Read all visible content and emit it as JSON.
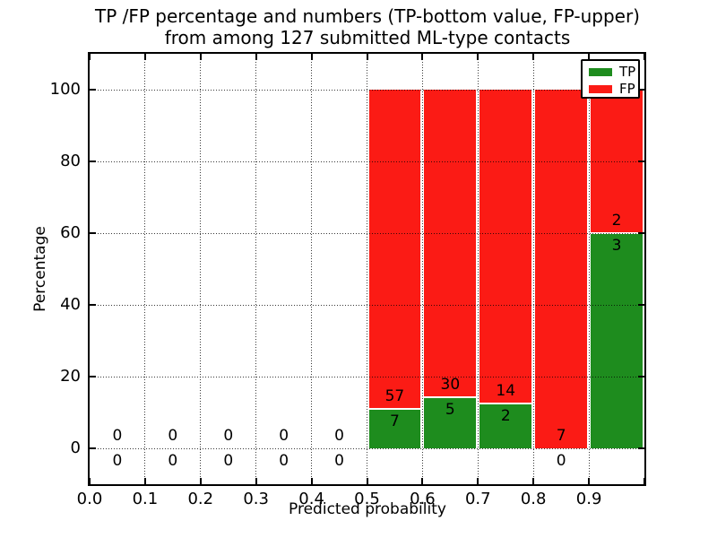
{
  "figure": {
    "title_line1": "TP /FP percentage and numbers (TP-bottom value, FP-upper)",
    "title_line2": "from among 127 submitted ML-type contacts",
    "xlabel": "Predicted probability",
    "ylabel": "Percentage"
  },
  "legend": {
    "items": [
      {
        "label": "TP",
        "color": "#1e8c1e"
      },
      {
        "label": "FP",
        "color": "#fb1b15"
      }
    ]
  },
  "chart_data": {
    "type": "bar",
    "stacked": true,
    "title": "TP /FP percentage and numbers (TP-bottom value, FP-upper) from among 127 submitted ML-type contacts",
    "xlabel": "Predicted probability",
    "ylabel": "Percentage",
    "total_contacts": 127,
    "xlim": [
      0.0,
      1.0
    ],
    "ylim": [
      -10,
      110
    ],
    "grid": true,
    "grid_style": "dotted",
    "legend_position": "upper right",
    "xticks": [
      "0.0",
      "0.1",
      "0.2",
      "0.3",
      "0.4",
      "0.5",
      "0.6",
      "0.7",
      "0.8",
      "0.9"
    ],
    "yticks": [
      0,
      20,
      40,
      60,
      80,
      100
    ],
    "colors": {
      "tp": "#1e8c1e",
      "fp": "#fb1b15"
    },
    "series": [
      {
        "name": "TP",
        "values": [
          0,
          0,
          0,
          0,
          0,
          7,
          5,
          2,
          0,
          3
        ]
      },
      {
        "name": "FP",
        "values": [
          0,
          0,
          0,
          0,
          0,
          57,
          30,
          14,
          7,
          2
        ]
      }
    ],
    "bins": [
      {
        "range": [
          0.0,
          0.1
        ],
        "center": 0.05,
        "tp_count": 0,
        "fp_count": 0,
        "tp_pct": 0,
        "fp_pct": 0
      },
      {
        "range": [
          0.1,
          0.2
        ],
        "center": 0.15,
        "tp_count": 0,
        "fp_count": 0,
        "tp_pct": 0,
        "fp_pct": 0
      },
      {
        "range": [
          0.2,
          0.3
        ],
        "center": 0.25,
        "tp_count": 0,
        "fp_count": 0,
        "tp_pct": 0,
        "fp_pct": 0
      },
      {
        "range": [
          0.3,
          0.4
        ],
        "center": 0.35,
        "tp_count": 0,
        "fp_count": 0,
        "tp_pct": 0,
        "fp_pct": 0
      },
      {
        "range": [
          0.4,
          0.5
        ],
        "center": 0.45,
        "tp_count": 0,
        "fp_count": 0,
        "tp_pct": 0,
        "fp_pct": 0
      },
      {
        "range": [
          0.5,
          0.6
        ],
        "center": 0.55,
        "tp_count": 7,
        "fp_count": 57,
        "tp_pct": 10.94,
        "fp_pct": 89.06
      },
      {
        "range": [
          0.6,
          0.7
        ],
        "center": 0.65,
        "tp_count": 5,
        "fp_count": 30,
        "tp_pct": 14.29,
        "fp_pct": 85.71
      },
      {
        "range": [
          0.7,
          0.8
        ],
        "center": 0.75,
        "tp_count": 2,
        "fp_count": 14,
        "tp_pct": 12.5,
        "fp_pct": 87.5
      },
      {
        "range": [
          0.8,
          0.9
        ],
        "center": 0.85,
        "tp_count": 0,
        "fp_count": 7,
        "tp_pct": 0,
        "fp_pct": 100
      },
      {
        "range": [
          0.9,
          1.0
        ],
        "center": 0.95,
        "tp_count": 3,
        "fp_count": 2,
        "tp_pct": 60,
        "fp_pct": 40
      }
    ]
  }
}
